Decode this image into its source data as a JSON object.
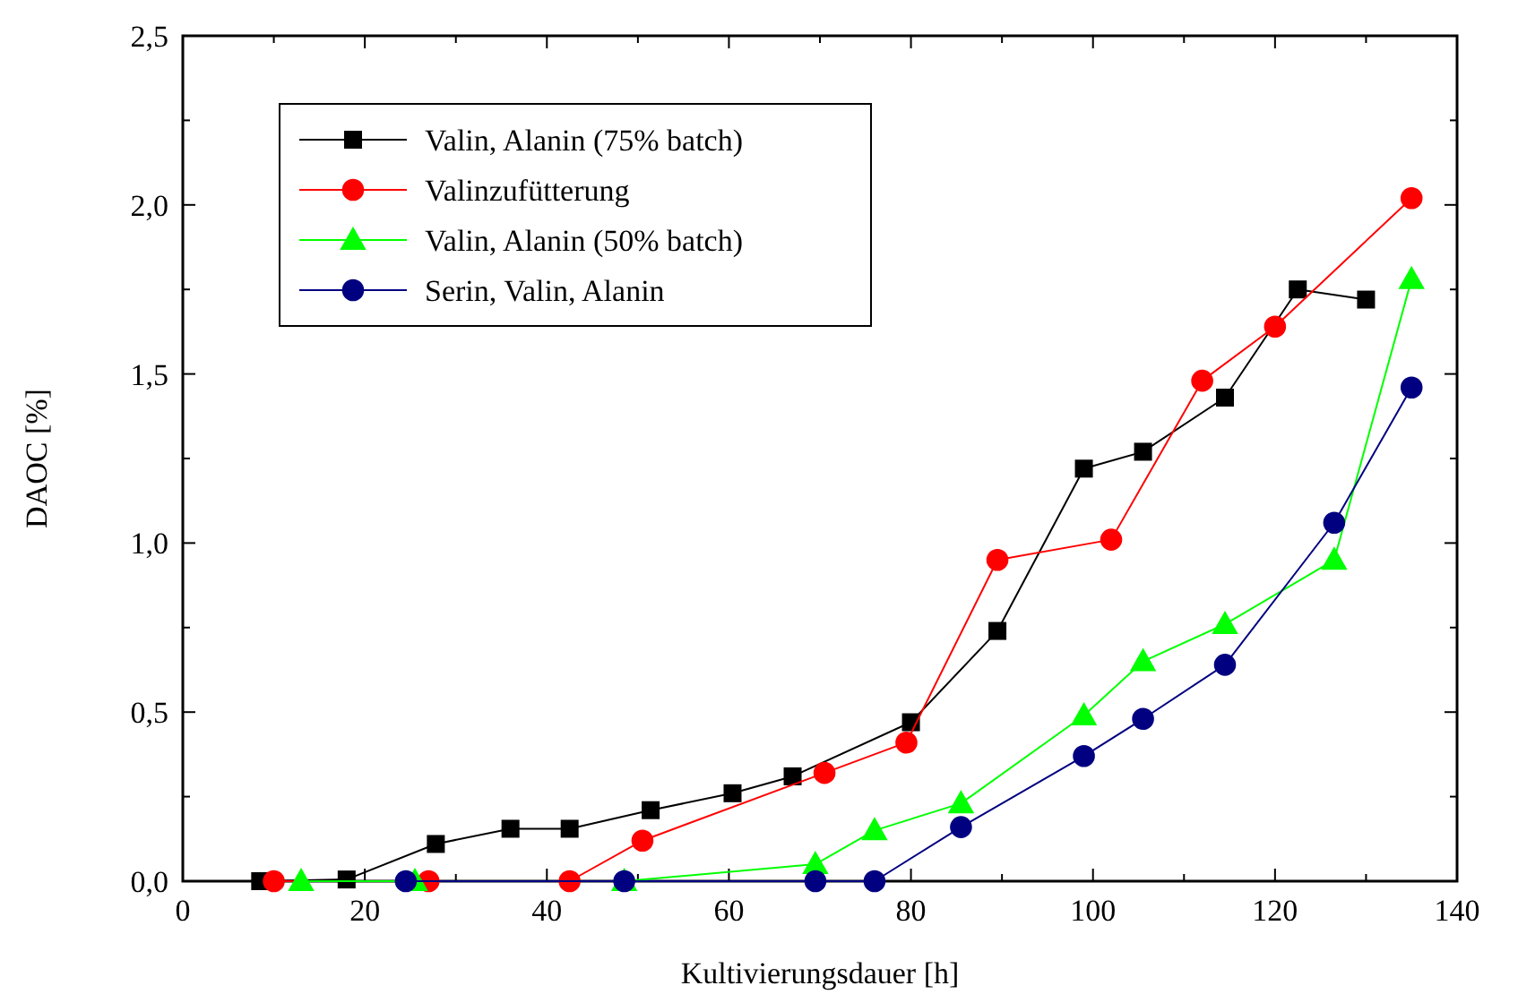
{
  "chart_data": {
    "type": "line",
    "xlabel": "Kultivierungsdauer [h]",
    "ylabel": "DAOC [%]",
    "xlim": [
      0,
      140
    ],
    "ylim": [
      0,
      2.5
    ],
    "xticks": [
      0,
      {
        "value": 10,
        "label": null
      },
      20,
      {
        "value": 30,
        "label": null
      },
      40,
      {
        "value": 50,
        "label": null
      },
      60,
      {
        "value": 70,
        "label": null
      },
      80,
      {
        "value": 90,
        "label": null
      },
      100,
      {
        "value": 110,
        "label": null
      },
      120,
      {
        "value": 130,
        "label": null
      },
      140
    ],
    "yticks": [
      {
        "value": 0,
        "label": "0,0"
      },
      {
        "value": 0.25,
        "label": null
      },
      {
        "value": 0.5,
        "label": "0,5"
      },
      {
        "value": 0.75,
        "label": null
      },
      {
        "value": 1,
        "label": "1,0"
      },
      {
        "value": 1.25,
        "label": null
      },
      {
        "value": 1.5,
        "label": "1,5"
      },
      {
        "value": 1.75,
        "label": null
      },
      {
        "value": 2,
        "label": "2,0"
      },
      {
        "value": 2.25,
        "label": null
      },
      {
        "value": 2.5,
        "label": "2,5"
      }
    ],
    "grid": false,
    "legend": "top left",
    "line_style": "solid",
    "series": [
      {
        "name": "Valin, Alanin (75% batch)",
        "color": "#000000",
        "marker": "square",
        "x": [
          8.5,
          18,
          27.8,
          36,
          42.5,
          51.4,
          60.4,
          67,
          80,
          89.5,
          99,
          105.5,
          114.5,
          122.5,
          130
        ],
        "values": [
          0,
          0.005,
          0.11,
          0.155,
          0.155,
          0.21,
          0.26,
          0.31,
          0.47,
          0.74,
          1.22,
          1.27,
          1.43,
          1.75,
          1.72
        ]
      },
      {
        "name": "Valinzufütterung",
        "color": "#ff0000",
        "marker": "circle",
        "x": [
          10,
          27,
          42.5,
          50.5,
          70.5,
          79.5,
          89.5,
          102,
          112,
          120,
          135
        ],
        "values": [
          0,
          0,
          0,
          0.12,
          0.32,
          0.41,
          0.95,
          1.01,
          1.48,
          1.64,
          2.02
        ]
      },
      {
        "name": "Valin, Alanin (50% batch)",
        "color": "#00ff00",
        "marker": "triangle",
        "x": [
          13,
          25.5,
          48.5,
          69.5,
          76,
          85.5,
          99,
          105.5,
          114.5,
          126.5,
          135
        ],
        "values": [
          0,
          0,
          0,
          0.05,
          0.15,
          0.23,
          0.49,
          0.65,
          0.76,
          0.95,
          1.78
        ]
      },
      {
        "name": "Serin, Valin, Alanin",
        "color": "#000080",
        "marker": "circle",
        "x": [
          24.5,
          48.5,
          69.5,
          76,
          85.5,
          99,
          105.5,
          114.5,
          126.5,
          135
        ],
        "values": [
          0,
          0,
          0,
          0,
          0.16,
          0.37,
          0.48,
          0.64,
          1.06,
          1.46
        ]
      }
    ]
  }
}
